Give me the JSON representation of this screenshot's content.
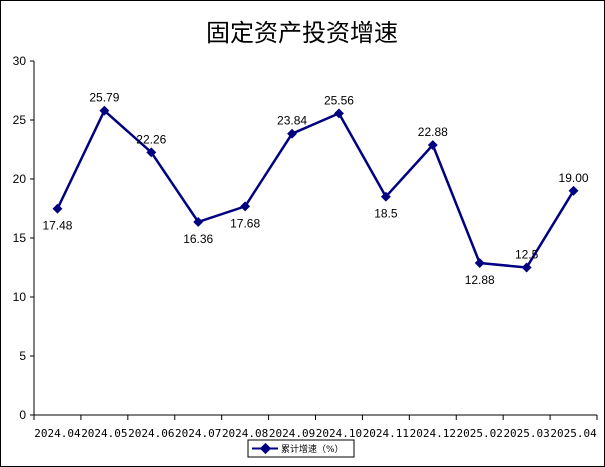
{
  "chart_data": {
    "type": "line",
    "title": "固定资产投资增速",
    "categories": [
      "2024.04",
      "2024.05",
      "2024.06",
      "2024.07",
      "2024.08",
      "2024.09",
      "2024.10",
      "2024.11",
      "2024.12",
      "2025.02",
      "2025.03",
      "2025.04"
    ],
    "series": [
      {
        "name": "累计增速（%）",
        "values": [
          17.48,
          25.79,
          22.26,
          16.36,
          17.68,
          23.84,
          25.56,
          18.5,
          22.88,
          12.88,
          12.5,
          19.0
        ],
        "labels": [
          "17.48",
          "25.79",
          "22.26",
          "16.36",
          "17.68",
          "23.84",
          "25.56",
          "18.5",
          "22.88",
          "12.88",
          "12.5",
          "19.00"
        ],
        "color": "#000080"
      }
    ],
    "ylim": [
      0,
      30
    ],
    "yticks": [
      0,
      5,
      10,
      15,
      20,
      25,
      30
    ],
    "grid": false,
    "legend": "bottom-center"
  }
}
